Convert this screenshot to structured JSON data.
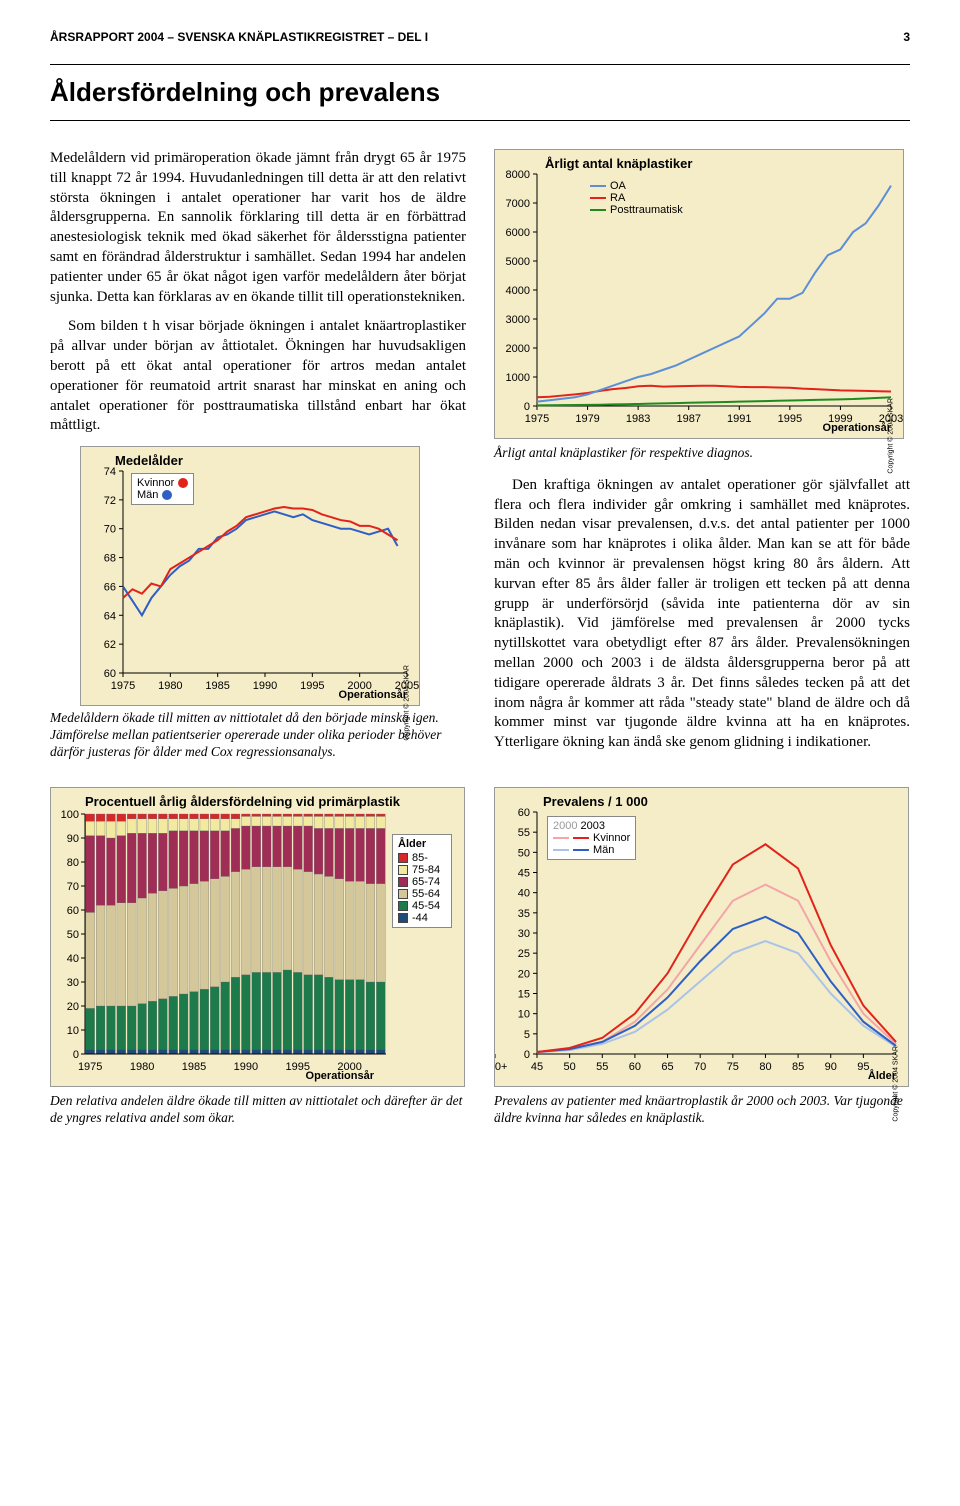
{
  "header": {
    "left": "ÅRSRAPPORT 2004 – SVENSKA KNÄPLASTIKREGISTRET – DEL I",
    "page": "3"
  },
  "section_title": "Åldersfördelning och prevalens",
  "para1": "Medelåldern vid primäroperation ökade jämnt från drygt 65 år 1975 till knappt 72 år 1994. Huvudanledningen till detta är att den relativt största ökningen i antalet operationer har varit hos de äldre åldersgrupperna. En sannolik förklaring till detta är en förbättrad anestesiologisk teknik med ökad säkerhet för åldersstigna patienter samt en förändrad ålderstruktur i samhället. Sedan 1994 har andelen patienter under 65 år ökat något igen varför medelåldern åter börjat sjunka. Detta kan förklaras av en ökande tillit till operationstekniken.",
  "para2": "Som bilden t h visar började ökningen i antalet knäartroplastiker på allvar under början av åttiotalet. Ökningen har huvudsakligen berott på ett ökat antal operationer för artros medan antalet operationer för reumatoid artrit snarast har minskat en aning och antalet operationer för posttraumatiska tillstånd enbart har ökat måttligt.",
  "para3": "Den kraftiga ökningen av antalet operationer gör självfallet att flera och flera individer går omkring i samhället med knäprotes. Bilden nedan visar prevalensen, d.v.s. det antal patienter per 1000 invånare som har knäprotes i olika ålder. Man kan se att för både män och kvinnor är prevalensen högst kring 80 års åldern. Att kurvan efter 85 års ålder faller är troligen ett tecken på att denna grupp är underförsörjd (såvida inte patienterna dör av sin knäplastik). Vid jämförelse med prevalensen år 2000 tycks nytillskottet vara obetydligt efter 87 års ålder. Prevalensökningen mellan 2000 och 2003 i de äldsta åldersgrupperna beror på att tidigare opererade åldrats 3 år. Det finns således tecken på att det inom några år kommer att råda \"steady state\" bland de äldre och då kommer minst var tjugonde äldre kvinna att ha en knäprotes. Ytterligare ökning kan ändå ske genom glidning i indikationer.",
  "chart_medel": {
    "title": "Medelålder",
    "legend": {
      "kvinnor": "Kvinnor",
      "man": "Män"
    },
    "colors": {
      "kvinnor": "#e2231a",
      "man": "#2d5fc4",
      "bg": "#f5ecc8",
      "grid": "#bdb78f"
    },
    "ylim": [
      60,
      74
    ],
    "ytick_step": 2,
    "yticks": [
      "60",
      "62",
      "64",
      "66",
      "68",
      "70",
      "72",
      "74"
    ],
    "xlim": [
      1975,
      2005
    ],
    "xticks": [
      "1975",
      "1980",
      "1985",
      "1990",
      "1995",
      "2000",
      "2005"
    ],
    "xlabel": "Operationsår",
    "copyright": "Copyright © 2004 SKAR",
    "kvinnor_y": [
      65.2,
      65.8,
      65.5,
      66.2,
      66.0,
      67.2,
      67.6,
      68.0,
      68.4,
      68.8,
      69.2,
      69.8,
      70.2,
      70.8,
      71.0,
      71.2,
      71.4,
      71.5,
      71.4,
      71.4,
      71.3,
      71.0,
      70.8,
      70.6,
      70.5,
      70.2,
      70.2,
      70.0,
      69.6,
      69.2
    ],
    "man_y": [
      66.0,
      65.0,
      64.0,
      65.2,
      66.0,
      66.8,
      67.4,
      67.8,
      68.6,
      68.6,
      69.4,
      69.6,
      70.0,
      70.6,
      70.8,
      71.0,
      71.2,
      71.0,
      70.8,
      71.0,
      70.6,
      70.4,
      70.2,
      70.0,
      70.0,
      69.8,
      69.6,
      69.8,
      70.0,
      68.8
    ],
    "x_years": [
      1975,
      1976,
      1977,
      1978,
      1979,
      1980,
      1981,
      1982,
      1983,
      1984,
      1985,
      1986,
      1987,
      1988,
      1989,
      1990,
      1991,
      1992,
      1993,
      1994,
      1995,
      1996,
      1997,
      1998,
      1999,
      2000,
      2001,
      2002,
      2003,
      2004
    ]
  },
  "caption_medel": "Medelåldern ökade till mitten av nittiotalet då den började minska igen. Jämförelse mellan patientserier opererade under olika perioder behöver därför justeras för ålder med Cox regressionsanalys.",
  "chart_arligt": {
    "title": "Årligt antal knäplastiker",
    "legend": {
      "oa": "OA",
      "ra": "RA",
      "pt": "Posttraumatisk"
    },
    "colors": {
      "oa": "#5b8fd6",
      "ra": "#e2231a",
      "pt": "#1f8a1f",
      "bg": "#f5ecc8"
    },
    "ylim": [
      0,
      8000
    ],
    "ytick_step": 1000,
    "yticks": [
      "0",
      "1000",
      "2000",
      "3000",
      "4000",
      "5000",
      "6000",
      "7000",
      "8000"
    ],
    "xlim": [
      1975,
      2003
    ],
    "xticks": [
      "1975",
      "1979",
      "1983",
      "1987",
      "1991",
      "1995",
      "1999",
      "2003"
    ],
    "xlabel": "Operationsår",
    "copyright": "Copyright © 2004 SKAR",
    "x_years": [
      1975,
      1976,
      1977,
      1978,
      1979,
      1980,
      1981,
      1982,
      1983,
      1984,
      1985,
      1986,
      1987,
      1988,
      1989,
      1990,
      1991,
      1992,
      1993,
      1994,
      1995,
      1996,
      1997,
      1998,
      1999,
      2000,
      2001,
      2002,
      2003
    ],
    "oa_y": [
      150,
      200,
      250,
      300,
      400,
      550,
      700,
      850,
      1000,
      1100,
      1250,
      1400,
      1600,
      1800,
      2000,
      2200,
      2400,
      2800,
      3200,
      3700,
      3700,
      3900,
      4600,
      5200,
      5400,
      6000,
      6300,
      6900,
      7600
    ],
    "ra_y": [
      300,
      320,
      360,
      400,
      450,
      520,
      580,
      620,
      680,
      700,
      670,
      680,
      690,
      700,
      700,
      680,
      660,
      650,
      650,
      640,
      630,
      600,
      580,
      560,
      540,
      530,
      520,
      510,
      500
    ],
    "pt_y": [
      20,
      25,
      30,
      35,
      40,
      45,
      55,
      60,
      70,
      80,
      90,
      100,
      110,
      120,
      130,
      140,
      150,
      160,
      170,
      180,
      190,
      200,
      210,
      220,
      230,
      240,
      260,
      280,
      300
    ]
  },
  "caption_arligt": "Årligt antal knäplastiker för respektive diagnos.",
  "chart_procent": {
    "title": "Procentuell årlig åldersfördelning vid primärplastik",
    "ylim": [
      0,
      100
    ],
    "ytick_step": 10,
    "yticks": [
      "0",
      "10",
      "20",
      "30",
      "40",
      "50",
      "60",
      "70",
      "80",
      "90",
      "100"
    ],
    "xlim": [
      1975,
      2003
    ],
    "xticks": [
      "1975",
      "1980",
      "1985",
      "1990",
      "1995",
      "2000"
    ],
    "xlabel": "Operationsår",
    "legend_title": "Ålder",
    "legend": [
      {
        "label": "85-",
        "color": "#d4292b"
      },
      {
        "label": "75-84",
        "color": "#f1eaa0"
      },
      {
        "label": "65-74",
        "color": "#a02d56"
      },
      {
        "label": "55-64",
        "color": "#d4c89a"
      },
      {
        "label": "45-54",
        "color": "#1d7a4a"
      },
      {
        "label": "-44",
        "color": "#1d4c7a"
      }
    ],
    "x_years": [
      1975,
      1976,
      1977,
      1978,
      1979,
      1980,
      1981,
      1982,
      1983,
      1984,
      1985,
      1986,
      1987,
      1988,
      1989,
      1990,
      1991,
      1992,
      1993,
      1994,
      1995,
      1996,
      1997,
      1998,
      1999,
      2000,
      2001,
      2002,
      2003
    ],
    "stacks": [
      [
        3,
        6,
        32,
        40,
        17,
        2
      ],
      [
        3,
        6,
        29,
        42,
        18,
        2
      ],
      [
        3,
        7,
        28,
        42,
        18,
        2
      ],
      [
        3,
        6,
        28,
        43,
        18,
        2
      ],
      [
        2,
        6,
        29,
        43,
        18,
        2
      ],
      [
        2,
        6,
        27,
        44,
        19,
        2
      ],
      [
        2,
        6,
        25,
        45,
        20,
        2
      ],
      [
        2,
        6,
        24,
        45,
        21,
        2
      ],
      [
        2,
        5,
        24,
        45,
        22,
        2
      ],
      [
        2,
        5,
        23,
        45,
        23,
        2
      ],
      [
        2,
        5,
        22,
        45,
        24,
        2
      ],
      [
        2,
        5,
        21,
        45,
        25,
        2
      ],
      [
        2,
        5,
        20,
        45,
        26,
        2
      ],
      [
        2,
        5,
        19,
        44,
        28,
        2
      ],
      [
        2,
        4,
        18,
        44,
        30,
        2
      ],
      [
        1,
        4,
        18,
        44,
        31,
        2
      ],
      [
        1,
        4,
        17,
        44,
        32,
        2
      ],
      [
        1,
        4,
        17,
        44,
        32,
        2
      ],
      [
        1,
        4,
        17,
        44,
        32,
        2
      ],
      [
        1,
        4,
        17,
        43,
        33,
        2
      ],
      [
        1,
        4,
        18,
        43,
        32,
        2
      ],
      [
        1,
        4,
        19,
        43,
        31,
        2
      ],
      [
        1,
        5,
        19,
        42,
        31,
        2
      ],
      [
        1,
        5,
        20,
        42,
        30,
        2
      ],
      [
        1,
        5,
        21,
        42,
        29,
        2
      ],
      [
        1,
        5,
        22,
        41,
        29,
        2
      ],
      [
        1,
        5,
        22,
        41,
        29,
        2
      ],
      [
        1,
        5,
        23,
        41,
        28,
        2
      ],
      [
        1,
        5,
        23,
        41,
        28,
        2
      ]
    ]
  },
  "caption_procent": "Den relativa andelen äldre ökade till mitten av nittiotalet och därefter är det de yngres relativa andel som ökar.",
  "chart_prev": {
    "title": "Prevalens / 1 000",
    "legend_years": [
      "2000",
      "2003"
    ],
    "legend": {
      "kvinnor": "Kvinnor",
      "man": "Män"
    },
    "colors": {
      "kvinnor2003": "#e2231a",
      "man2003": "#2d5fc4",
      "kvinnor2000": "#f2a6a6",
      "man2000": "#a9c3e8"
    },
    "ylim": [
      0,
      60
    ],
    "ytick_step": 5,
    "yticks": [
      "0",
      "5",
      "10",
      "15",
      "20",
      "25",
      "30",
      "35",
      "40",
      "45",
      "50",
      "55",
      "60"
    ],
    "xlim": [
      45,
      100
    ],
    "xticks": [
      "45",
      "50",
      "55",
      "60",
      "65",
      "70",
      "75",
      "80",
      "85",
      "90",
      "95",
      "100+"
    ],
    "xlabel": "Ålder",
    "copyright": "Copyright © 2004 SKAR",
    "x_ages": [
      45,
      50,
      55,
      60,
      65,
      70,
      75,
      80,
      85,
      90,
      95,
      100
    ],
    "kvinnor2003_y": [
      0.5,
      1.5,
      4,
      10,
      20,
      34,
      47,
      52,
      46,
      27,
      12,
      3
    ],
    "man2003_y": [
      0.5,
      1.2,
      3,
      7,
      14,
      23,
      31,
      34,
      30,
      18,
      8,
      2
    ],
    "kvinnor2000_y": [
      0.4,
      1.2,
      3,
      8,
      16,
      27,
      38,
      42,
      38,
      23,
      10,
      2.5
    ],
    "man2000_y": [
      0.4,
      1.0,
      2.5,
      5.5,
      11,
      18,
      25,
      28,
      25,
      15,
      7,
      1.8
    ]
  },
  "caption_prev": "Prevalens av patienter med knäartroplastik år 2000 och 2003. Var tjugonde äldre kvinna har således en knäplastik."
}
